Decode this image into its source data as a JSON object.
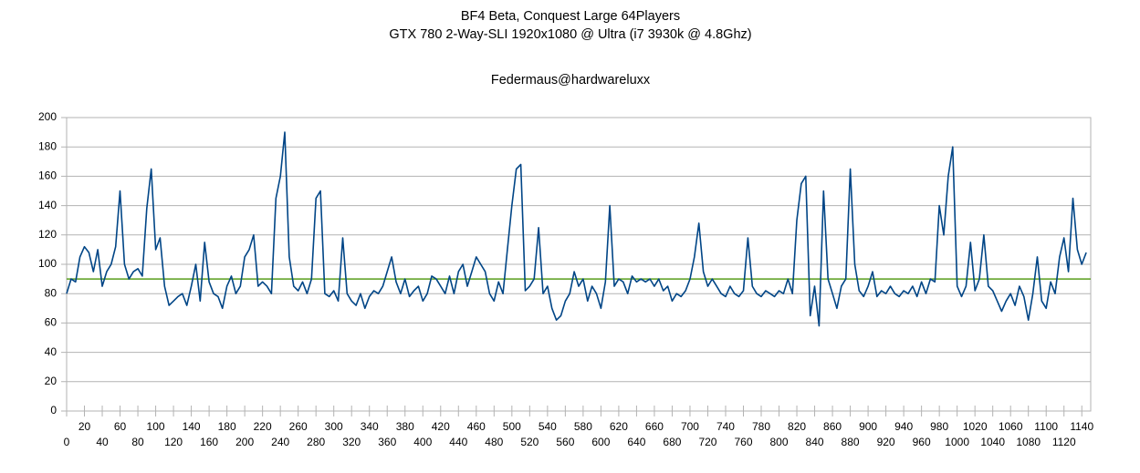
{
  "chart_data": {
    "type": "line",
    "title": "BF4 Beta, Conquest Large 64Players",
    "subtitle": "GTX 780 2-Way-SLI 1920x1080 @ Ultra (i7 3930k @ 4.8Ghz)",
    "annotation": "Federmaus@hardwareluxx",
    "color": "#004586",
    "reference_line": {
      "value": 90,
      "color": "#579d1c"
    },
    "grid": true,
    "xlim": [
      0,
      1150
    ],
    "ylim": [
      0,
      200
    ],
    "yticks": [
      0,
      20,
      40,
      60,
      80,
      100,
      120,
      140,
      160,
      180,
      200
    ],
    "xticks": [
      0,
      20,
      40,
      60,
      80,
      100,
      120,
      140,
      160,
      180,
      200,
      220,
      240,
      260,
      280,
      300,
      320,
      340,
      360,
      380,
      400,
      420,
      440,
      460,
      480,
      500,
      520,
      540,
      560,
      580,
      600,
      620,
      640,
      660,
      680,
      700,
      720,
      740,
      760,
      780,
      800,
      820,
      840,
      860,
      880,
      900,
      920,
      940,
      960,
      980,
      1000,
      1020,
      1040,
      1060,
      1080,
      1100,
      1120,
      1140
    ],
    "x": [
      0,
      5,
      10,
      15,
      20,
      25,
      30,
      35,
      40,
      45,
      50,
      55,
      60,
      65,
      70,
      75,
      80,
      85,
      90,
      95,
      100,
      105,
      110,
      115,
      120,
      125,
      130,
      135,
      140,
      145,
      150,
      155,
      160,
      165,
      170,
      175,
      180,
      185,
      190,
      195,
      200,
      205,
      210,
      215,
      220,
      225,
      230,
      235,
      240,
      245,
      250,
      255,
      260,
      265,
      270,
      275,
      280,
      285,
      290,
      295,
      300,
      305,
      310,
      315,
      320,
      325,
      330,
      335,
      340,
      345,
      350,
      355,
      360,
      365,
      370,
      375,
      380,
      385,
      390,
      395,
      400,
      405,
      410,
      415,
      420,
      425,
      430,
      435,
      440,
      445,
      450,
      455,
      460,
      465,
      470,
      475,
      480,
      485,
      490,
      495,
      500,
      505,
      510,
      515,
      520,
      525,
      530,
      535,
      540,
      545,
      550,
      555,
      560,
      565,
      570,
      575,
      580,
      585,
      590,
      595,
      600,
      605,
      610,
      615,
      620,
      625,
      630,
      635,
      640,
      645,
      650,
      655,
      660,
      665,
      670,
      675,
      680,
      685,
      690,
      695,
      700,
      705,
      710,
      715,
      720,
      725,
      730,
      735,
      740,
      745,
      750,
      755,
      760,
      765,
      770,
      775,
      780,
      785,
      790,
      795,
      800,
      805,
      810,
      815,
      820,
      825,
      830,
      835,
      840,
      845,
      850,
      855,
      860,
      865,
      870,
      875,
      880,
      885,
      890,
      895,
      900,
      905,
      910,
      915,
      920,
      925,
      930,
      935,
      940,
      945,
      950,
      955,
      960,
      965,
      970,
      975,
      980,
      985,
      990,
      995,
      1000,
      1005,
      1010,
      1015,
      1020,
      1025,
      1030,
      1035,
      1040,
      1045,
      1050,
      1055,
      1060,
      1065,
      1070,
      1075,
      1080,
      1085,
      1090,
      1095,
      1100,
      1105,
      1110,
      1115,
      1120,
      1125,
      1130,
      1135,
      1140,
      1145
    ],
    "values": [
      80,
      90,
      88,
      105,
      112,
      108,
      95,
      110,
      85,
      95,
      100,
      112,
      150,
      100,
      90,
      95,
      97,
      92,
      138,
      165,
      110,
      118,
      85,
      72,
      75,
      78,
      80,
      72,
      85,
      100,
      75,
      115,
      88,
      80,
      78,
      70,
      85,
      92,
      80,
      85,
      105,
      110,
      120,
      85,
      88,
      85,
      80,
      145,
      160,
      190,
      105,
      85,
      82,
      88,
      80,
      90,
      145,
      150,
      80,
      78,
      82,
      75,
      118,
      80,
      75,
      72,
      80,
      70,
      78,
      82,
      80,
      85,
      95,
      105,
      88,
      80,
      90,
      78,
      82,
      85,
      75,
      80,
      92,
      90,
      85,
      80,
      92,
      80,
      95,
      100,
      85,
      95,
      105,
      100,
      95,
      80,
      75,
      88,
      80,
      110,
      140,
      165,
      168,
      82,
      85,
      90,
      125,
      80,
      85,
      70,
      62,
      65,
      75,
      80,
      95,
      85,
      90,
      75,
      85,
      80,
      70,
      88,
      140,
      85,
      90,
      88,
      80,
      92,
      88,
      90,
      88,
      90,
      85,
      90,
      82,
      85,
      75,
      80,
      78,
      82,
      90,
      105,
      128,
      95,
      85,
      90,
      85,
      80,
      78,
      85,
      80,
      78,
      82,
      118,
      85,
      80,
      78,
      82,
      80,
      78,
      82,
      80,
      90,
      80,
      130,
      155,
      160,
      65,
      85,
      58,
      150,
      90,
      80,
      70,
      85,
      90,
      165,
      100,
      82,
      78,
      85,
      95,
      78,
      82,
      80,
      85,
      80,
      78,
      82,
      80,
      85,
      78,
      88,
      80,
      90,
      88,
      140,
      120,
      160,
      180,
      85,
      78,
      85,
      115,
      82,
      90,
      120,
      85,
      82,
      75,
      68,
      75,
      80,
      72,
      85,
      78,
      62,
      80,
      105,
      75,
      70,
      88,
      80,
      105,
      118,
      95,
      145,
      110,
      100,
      108
    ]
  }
}
